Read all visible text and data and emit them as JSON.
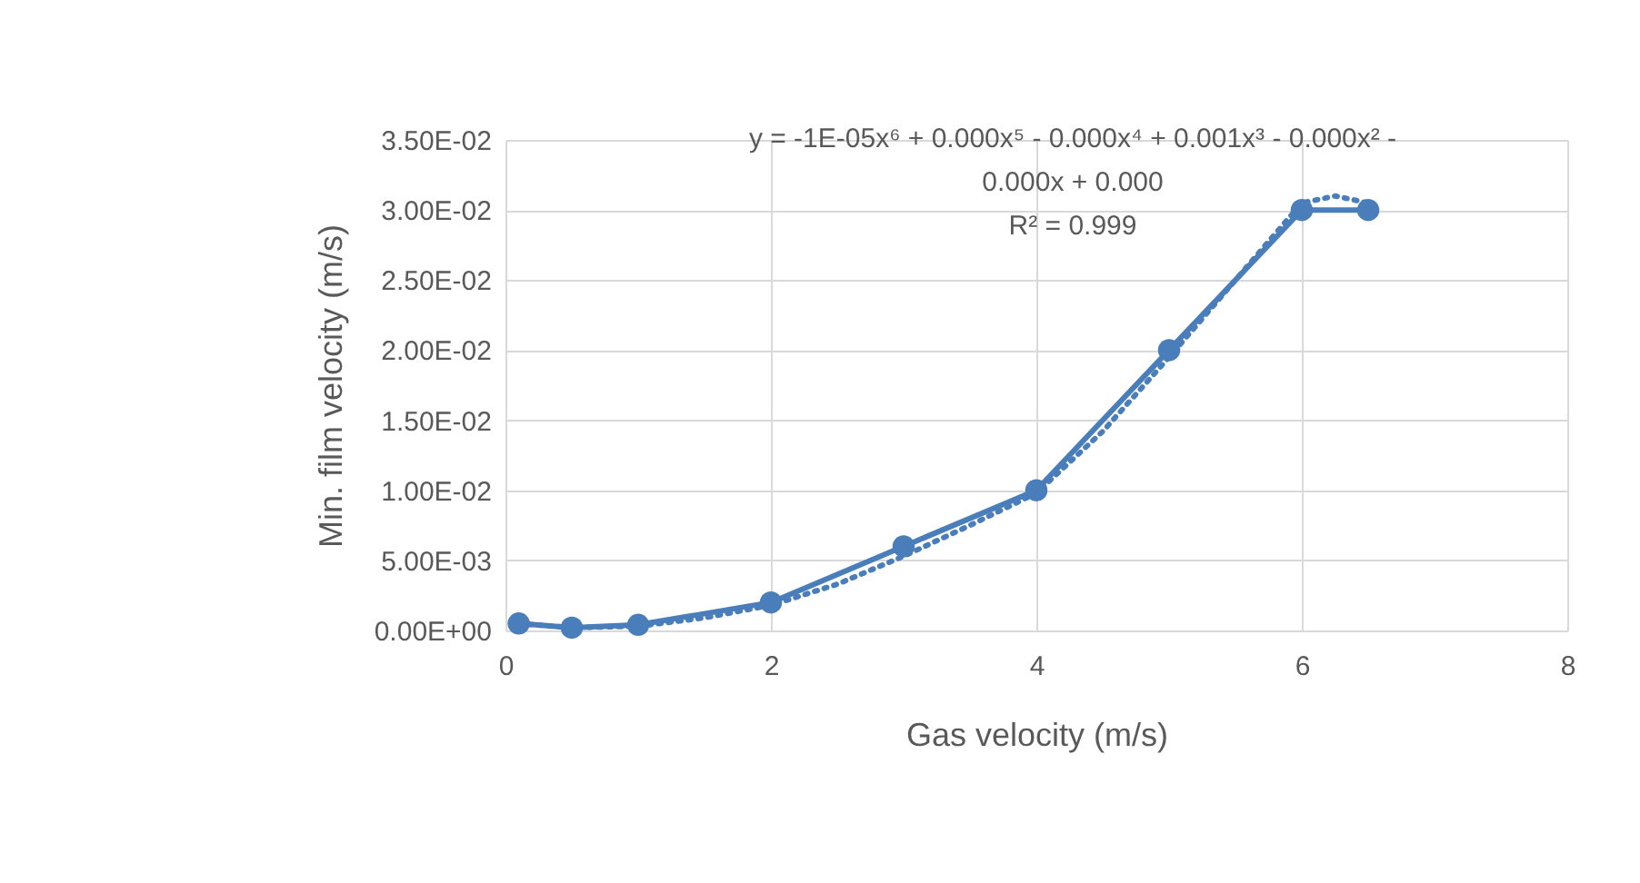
{
  "chart_data": {
    "type": "line",
    "xlabel": "Gas velocity (m/s)",
    "ylabel": "Min. film velocity (m/s)",
    "annotations": [
      "y = -1E-05x⁶ + 0.000x⁵ - 0.000x⁴ + 0.001x³ - 0.000x² - 0.000x + 0.000",
      "R² = 0.999"
    ],
    "xlim": [
      0,
      8
    ],
    "xticks": [
      0,
      2,
      4,
      6,
      8
    ],
    "ylim": [
      0,
      0.035
    ],
    "yticks": [
      {
        "value": 0,
        "label": "0.00E+00"
      },
      {
        "value": 0.005,
        "label": "5.00E-03"
      },
      {
        "value": 0.01,
        "label": "1.00E-02"
      },
      {
        "value": 0.015,
        "label": "1.50E-02"
      },
      {
        "value": 0.02,
        "label": "2.00E-02"
      },
      {
        "value": 0.025,
        "label": "2.50E-02"
      },
      {
        "value": 0.03,
        "label": "3.00E-02"
      },
      {
        "value": 0.035,
        "label": "3.50E-02"
      }
    ],
    "grid": true,
    "series": [
      {
        "color": "#4a7ebb",
        "marker": "circle",
        "line_style": "solid",
        "x": [
          0.1,
          0.5,
          1,
          2,
          3,
          4,
          5,
          6,
          6.5
        ],
        "values": [
          0.0005,
          0.0002,
          0.0004,
          0.002,
          0.006,
          0.01,
          0.02,
          0.03,
          0.03
        ]
      },
      {
        "color": "#4a7ebb",
        "marker": "none",
        "line_style": "dotted",
        "x": [
          0.1,
          0.5,
          1,
          1.5,
          2,
          2.5,
          3,
          3.5,
          4,
          4.5,
          5,
          5.5,
          6,
          6.25,
          6.5
        ],
        "values": [
          0.0005,
          0.0002,
          0.0003,
          0.0009,
          0.0018,
          0.0033,
          0.0053,
          0.0075,
          0.0098,
          0.0142,
          0.0195,
          0.025,
          0.0305,
          0.031,
          0.0305
        ]
      }
    ]
  }
}
